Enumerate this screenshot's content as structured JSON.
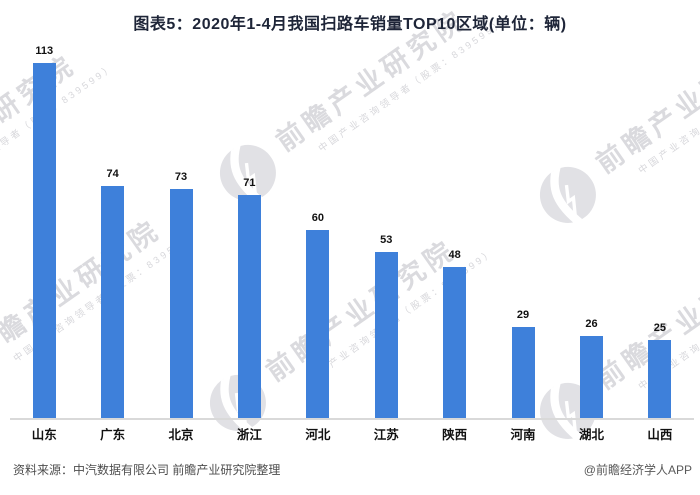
{
  "title": "图表5：2020年1-4月我国扫路车销量TOP10区域(单位：辆)",
  "chart_data": {
    "type": "bar",
    "title": "图表5：2020年1-4月我国扫路车销量TOP10区域(单位：辆)",
    "categories": [
      "山东",
      "广东",
      "北京",
      "浙江",
      "河北",
      "江苏",
      "陕西",
      "河南",
      "湖北",
      "山西"
    ],
    "values": [
      113,
      74,
      73,
      71,
      60,
      53,
      48,
      29,
      26,
      25
    ],
    "unit": "辆",
    "xlabel": "",
    "ylabel": "",
    "ylim": [
      0,
      120
    ],
    "grid": false,
    "legend_position": "none",
    "bar_color": "#3e80da",
    "value_labels_shown": true
  },
  "footer": {
    "source": "资料来源：中汽数据有限公司 前瞻产业研究院整理",
    "credit": "@前瞻经济学人APP"
  },
  "watermark": {
    "main": "前瞻产业研究院",
    "sub": "中国产业咨询领导者（股票：839599）",
    "logo": "qianzhan-circle-swoosh-logo"
  },
  "colors": {
    "bar": "#3e80da",
    "title": "#1e2538",
    "axis_line": "#d9d9d9",
    "label": "#111111",
    "footer_text": "#4d4d4d",
    "watermark": "#dadade",
    "background": "#ffffff"
  }
}
